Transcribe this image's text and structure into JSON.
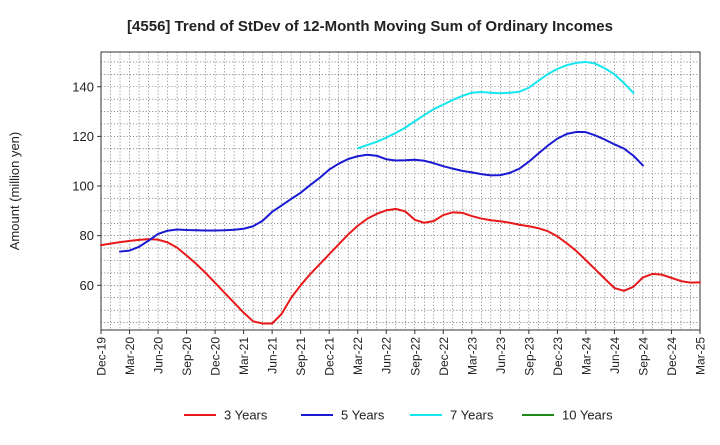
{
  "chart_data": {
    "type": "line",
    "title": "[4556]  Trend of StDev of 12-Month Moving Sum of Ordinary Incomes",
    "xlabel": "",
    "ylabel": "Amount (million yen)",
    "ylim": [
      42,
      154
    ],
    "yticks": [
      60,
      80,
      100,
      120,
      140
    ],
    "grid": true,
    "legend_position": "bottom",
    "x_tick_labels": [
      "Dec-19",
      "Mar-20",
      "Jun-20",
      "Sep-20",
      "Dec-20",
      "Mar-21",
      "Jun-21",
      "Sep-21",
      "Dec-21",
      "Mar-22",
      "Jun-22",
      "Sep-22",
      "Dec-22",
      "Mar-23",
      "Jun-23",
      "Sep-23",
      "Dec-23",
      "Mar-24",
      "Jun-24",
      "Sep-24",
      "Dec-24",
      "Mar-25"
    ],
    "x_start_label": "Dec-19",
    "x_month_count": 63,
    "series": [
      {
        "name": "3 Years",
        "color": "#e8191a",
        "start_index": 0,
        "values": [
          76.2,
          76.8,
          77.4,
          77.9,
          78.3,
          78.6,
          78.4,
          77.3,
          75.2,
          72.0,
          68.7,
          65.0,
          61.0,
          57.0,
          53.0,
          49.0,
          45.5,
          44.6,
          44.6,
          48.5,
          55.0,
          60.0,
          64.5,
          68.5,
          72.5,
          76.5,
          80.5,
          84.0,
          86.8,
          88.8,
          90.2,
          90.8,
          89.8,
          86.4,
          85.2,
          85.9,
          88.3,
          89.4,
          89.2,
          87.9,
          86.9,
          86.2,
          85.8,
          85.2,
          84.4,
          83.8,
          83.0,
          81.8,
          79.7,
          76.9,
          73.8,
          70.1,
          66.4,
          62.6,
          58.9,
          57.8,
          59.4,
          63.2,
          64.6,
          64.3,
          63.0,
          61.7,
          61.1,
          61.2
        ]
      },
      {
        "name": "5 Years",
        "color": "#1a1ad2",
        "start_index": 2,
        "values": [
          73.6,
          74.0,
          75.5,
          78.0,
          80.7,
          82.0,
          82.5,
          82.3,
          82.2,
          82.1,
          82.1,
          82.2,
          82.4,
          82.8,
          83.8,
          86.0,
          89.6,
          92.2,
          94.8,
          97.3,
          100.4,
          103.3,
          106.6,
          109.0,
          110.9,
          112.0,
          112.6,
          112.2,
          110.8,
          110.3,
          110.4,
          110.6,
          110.2,
          109.2,
          108.0,
          107.0,
          106.1,
          105.5,
          104.8,
          104.3,
          104.4,
          105.3,
          107.0,
          109.8,
          113.1,
          116.3,
          119.1,
          121.0,
          121.8,
          121.7,
          120.4,
          118.7,
          116.8,
          115.1,
          112.2,
          108.3
        ]
      },
      {
        "name": "7 Years",
        "color": "#15e6f0",
        "start_index": 27,
        "values": [
          115.2,
          116.5,
          117.8,
          119.5,
          121.4,
          123.5,
          126.1,
          128.6,
          131.0,
          132.8,
          134.7,
          136.3,
          137.6,
          137.9,
          137.6,
          137.4,
          137.6,
          138.0,
          139.6,
          142.4,
          145.1,
          147.2,
          148.7,
          149.6,
          150.0,
          149.3,
          147.4,
          145.0,
          141.5,
          137.5
        ]
      },
      {
        "name": "10 Years",
        "color": "#1c8a1c",
        "start_index": 0,
        "values": []
      }
    ]
  }
}
